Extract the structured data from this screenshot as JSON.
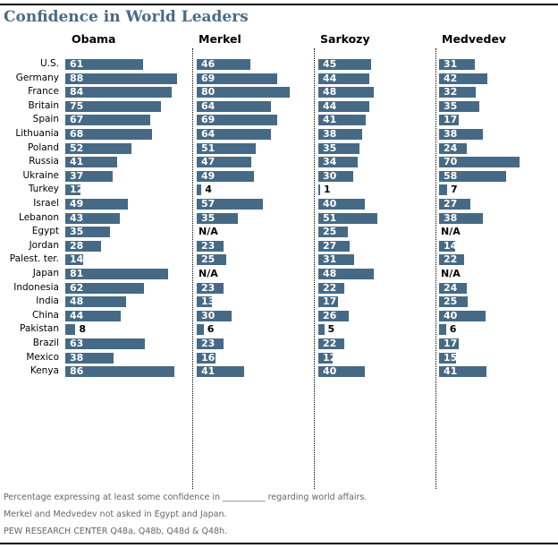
{
  "chart_data": {
    "type": "bar",
    "title": "Confidence in World Leaders",
    "series_labels": [
      "Obama",
      "Merkel",
      "Sarkozy",
      "Medvedev"
    ],
    "xlim": [
      0,
      100
    ],
    "grid": false,
    "groups": [
      [
        {
          "country": "U.S.",
          "values": [
            61,
            46,
            45,
            31
          ]
        }
      ],
      [
        {
          "country": "Germany",
          "values": [
            88,
            69,
            44,
            42
          ]
        },
        {
          "country": "France",
          "values": [
            84,
            80,
            48,
            32
          ]
        },
        {
          "country": "Britain",
          "values": [
            75,
            64,
            44,
            35
          ]
        },
        {
          "country": "Spain",
          "values": [
            67,
            69,
            41,
            17
          ]
        }
      ],
      [
        {
          "country": "Lithuania",
          "values": [
            68,
            64,
            38,
            38
          ]
        },
        {
          "country": "Poland",
          "values": [
            52,
            51,
            35,
            24
          ]
        },
        {
          "country": "Russia",
          "values": [
            41,
            47,
            34,
            70
          ]
        },
        {
          "country": "Ukraine",
          "values": [
            37,
            49,
            30,
            58
          ]
        }
      ],
      [
        {
          "country": "Turkey",
          "values": [
            12,
            4,
            1,
            7
          ]
        }
      ],
      [
        {
          "country": "Israel",
          "values": [
            49,
            57,
            40,
            27
          ]
        },
        {
          "country": "Lebanon",
          "values": [
            43,
            35,
            51,
            38
          ]
        },
        {
          "country": "Egypt",
          "values": [
            35,
            null,
            25,
            null
          ]
        },
        {
          "country": "Jordan",
          "values": [
            28,
            23,
            27,
            14
          ]
        },
        {
          "country": "Palest. ter.",
          "values": [
            14,
            25,
            31,
            22
          ]
        }
      ],
      [
        {
          "country": "Japan",
          "values": [
            81,
            null,
            48,
            null
          ]
        },
        {
          "country": "Indonesia",
          "values": [
            62,
            23,
            22,
            24
          ]
        },
        {
          "country": "India",
          "values": [
            48,
            13,
            17,
            25
          ]
        },
        {
          "country": "China",
          "values": [
            44,
            30,
            26,
            40
          ]
        },
        {
          "country": "Pakistan",
          "values": [
            8,
            6,
            5,
            6
          ]
        }
      ],
      [
        {
          "country": "Brazil",
          "values": [
            63,
            23,
            22,
            17
          ]
        },
        {
          "country": "Mexico",
          "values": [
            38,
            16,
            12,
            15
          ]
        }
      ],
      [
        {
          "country": "Kenya",
          "values": [
            86,
            41,
            40,
            41
          ]
        }
      ]
    ],
    "na_label": "N/A",
    "bar_color": "#466a85"
  },
  "notes": [
    "Percentage expressing at least some confidence in __________ regarding world affairs.",
    "Merkel and Medvedev not asked in Egypt and Japan.",
    "PEW RESEARCH  CENTER Q48a, Q48b, Q48d & Q48h."
  ]
}
